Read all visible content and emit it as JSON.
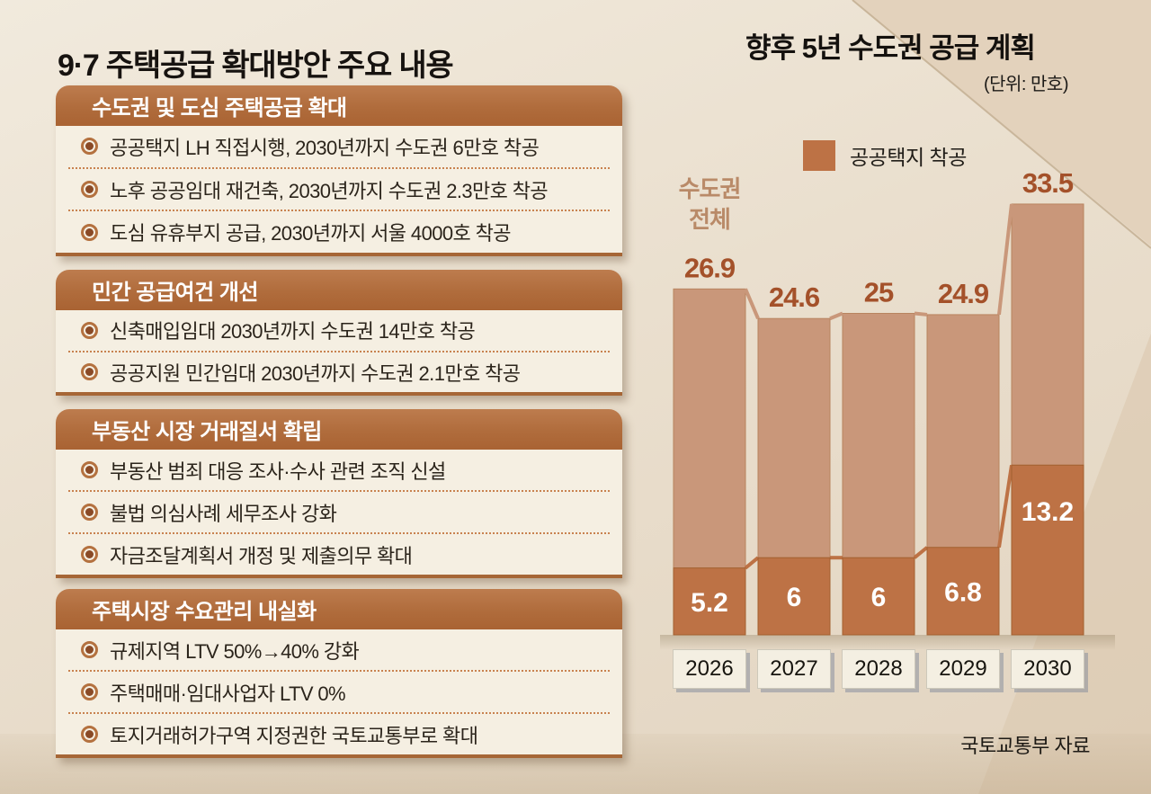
{
  "page": {
    "left_title": "9·7 주택공급 확대방안 주요 내용"
  },
  "left_panel": {
    "sections": [
      {
        "header": "수도권 및 도심 주택공급 확대",
        "items": [
          "공공택지 LH 직접시행, 2030년까지 수도권 6만호 착공",
          "노후 공공임대 재건축, 2030년까지 수도권 2.3만호 착공",
          "도심 유휴부지 공급, 2030년까지 서울 4000호 착공"
        ]
      },
      {
        "header": "민간 공급여건 개선",
        "items": [
          "신축매입임대 2030년까지 수도권 14만호 착공",
          "공공지원 민간임대 2030년까지 수도권 2.1만호 착공"
        ]
      },
      {
        "header": "부동산 시장 거래질서 확립",
        "items": [
          "부동산 범죄 대응 조사·수사 관련 조직 신설",
          "불법 의심사례 세무조사 강화",
          "자금조달계획서 개정 및 제출의무 확대"
        ]
      },
      {
        "header": "주택시장 수요관리 내실화",
        "items": [
          "규제지역 LTV 50%→40% 강화",
          "주택매매·임대사업자 LTV 0%",
          "토지거래허가구역 지정권한 국토교통부로 확대"
        ]
      }
    ]
  },
  "chart": {
    "title": "향후 5년 수도권 공급 계획",
    "unit_label": "(단위: 만호)",
    "legend_label": "공공택지 착공",
    "group_label": "수도권 전체",
    "source": "국토교통부 자료"
  },
  "chart_data": {
    "type": "bar",
    "title": "향후 5년 수도권 공급 계획",
    "unit": "만호",
    "categories": [
      "2026",
      "2027",
      "2028",
      "2029",
      "2030"
    ],
    "series": [
      {
        "name": "수도권 전체",
        "values": [
          26.9,
          24.6,
          25,
          24.9,
          33.5
        ],
        "color": "#c9977a",
        "label_color": "#a4512a"
      },
      {
        "name": "공공택지 착공",
        "values": [
          5.2,
          6,
          6,
          6.8,
          13.2
        ],
        "color": "#bd7245",
        "label_color": "#ffffff"
      }
    ],
    "ylim": [
      0,
      38
    ],
    "grid": false,
    "legend_position": "top",
    "note": "공공택지 착공 bars are drawn inside the 수도권 전체 bars (overlay), bar tops joined by step connectors"
  },
  "colors": {
    "section_header": "#b06c3c",
    "card_body": "#f5efe2",
    "bullet_ring": "#b4713f",
    "dotted_rule": "#c8824f",
    "light_bar": "#c9977a",
    "dark_bar": "#bd7245",
    "value_label": "#a4512a",
    "group_label": "#b98a68",
    "background": "#eadfce"
  }
}
